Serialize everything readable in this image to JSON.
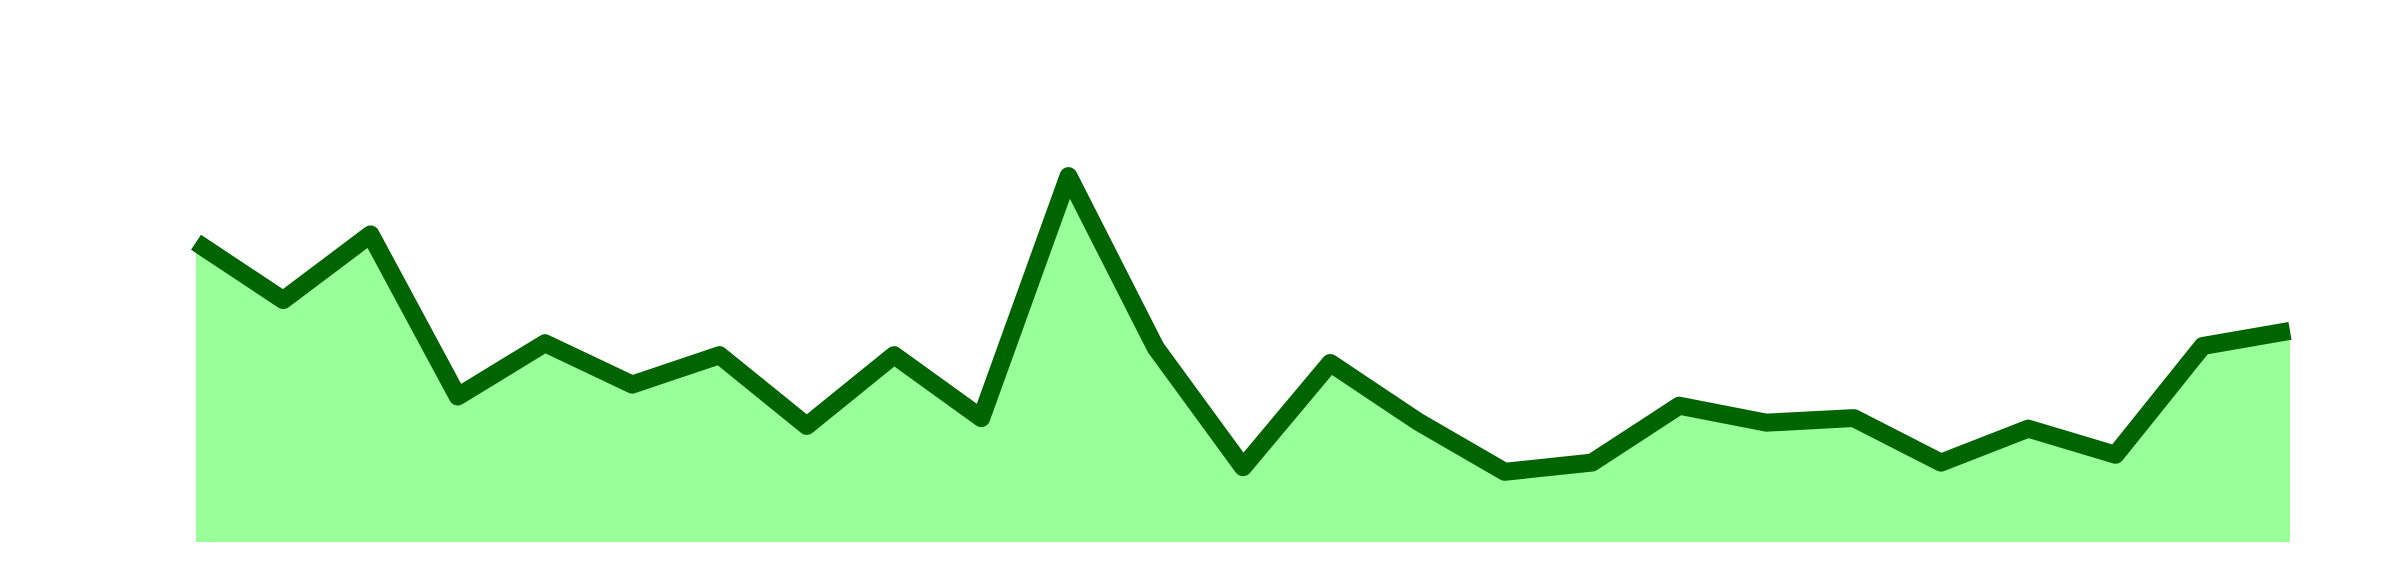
{
  "chart_data": {
    "type": "area",
    "categories": [
      null,
      null,
      null,
      null,
      null,
      null,
      null,
      null,
      null,
      null,
      null,
      null,
      null,
      null,
      null,
      null,
      null,
      null,
      null,
      null,
      null,
      null,
      null,
      null,
      null
    ],
    "values": [
      65.3,
      52.7,
      67,
      31.7,
      43.3,
      34.3,
      40.7,
      25.3,
      40.7,
      27,
      79.7,
      42.3,
      16.3,
      39,
      26.3,
      15.3,
      17.3,
      29.7,
      26,
      27,
      17.3,
      24.7,
      19,
      42.7,
      46
    ],
    "color": "#006400",
    "fill_color": "#99ff99",
    "ylim": [
      0,
      100
    ]
  }
}
